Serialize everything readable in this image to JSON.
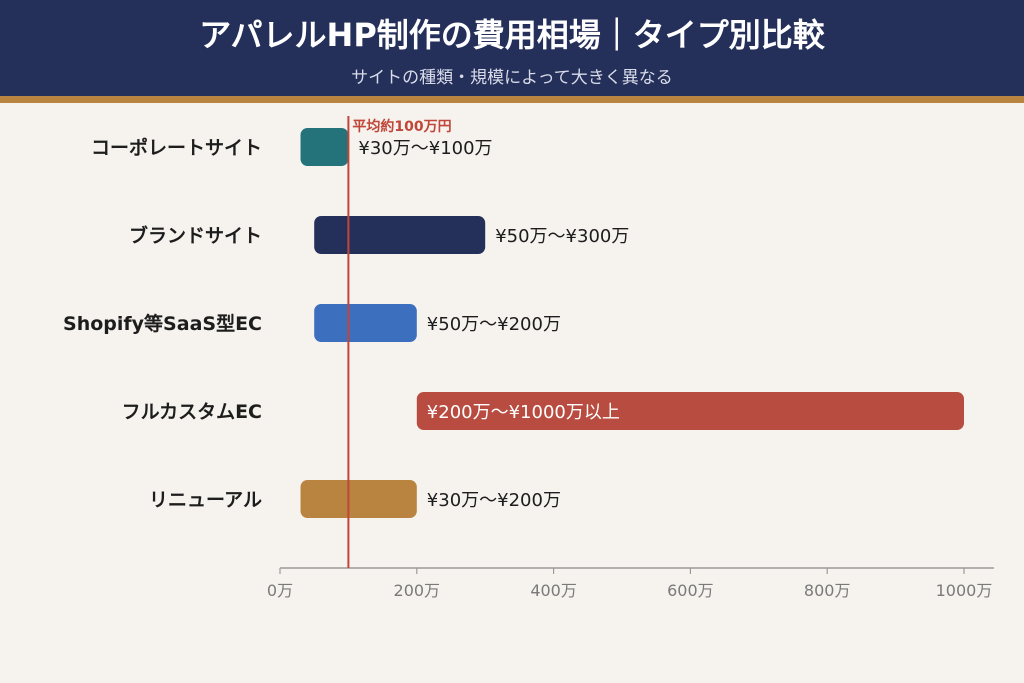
{
  "header": {
    "title": "アパレルHP制作の費用相場｜タイプ別比較",
    "subtitle": "サイトの種類・規模によって大きく異なる"
  },
  "colors": {
    "header_bg": "#25305a",
    "accent_bar": "#b8843f",
    "background": "#f6f3ee",
    "reference_line": "#c0463a"
  },
  "chart_data": {
    "type": "bar",
    "orientation": "horizontal",
    "title": "",
    "xlabel": "",
    "ylabel": "",
    "xlim": [
      0,
      1000
    ],
    "grid": false,
    "ticks": [
      {
        "value": 0,
        "label": "0万"
      },
      {
        "value": 200,
        "label": "200万"
      },
      {
        "value": 400,
        "label": "400万"
      },
      {
        "value": 600,
        "label": "600万"
      },
      {
        "value": 800,
        "label": "800万"
      },
      {
        "value": 1000,
        "label": "1000万"
      }
    ],
    "reference_line": {
      "value": 100,
      "label": "平均約100万円",
      "color": "#c0463a"
    },
    "bars": [
      {
        "category": "コーポレートサイト",
        "min": 30,
        "max": 100,
        "label": "¥30万〜¥100万",
        "color": "#24727a",
        "label_inside": false
      },
      {
        "category": "ブランドサイト",
        "min": 50,
        "max": 300,
        "label": "¥50万〜¥300万",
        "color": "#25305a",
        "label_inside": false
      },
      {
        "category": "Shopify等SaaS型EC",
        "min": 50,
        "max": 200,
        "label": "¥50万〜¥200万",
        "color": "#3c6fbd",
        "label_inside": false
      },
      {
        "category": "フルカスタムEC",
        "min": 200,
        "max": 1000,
        "label": "¥200万〜¥1000万以上",
        "color": "#b84c40",
        "label_inside": true
      },
      {
        "category": "リニューアル",
        "min": 30,
        "max": 200,
        "label": "¥30万〜¥200万",
        "color": "#b8843f",
        "label_inside": false
      }
    ]
  }
}
